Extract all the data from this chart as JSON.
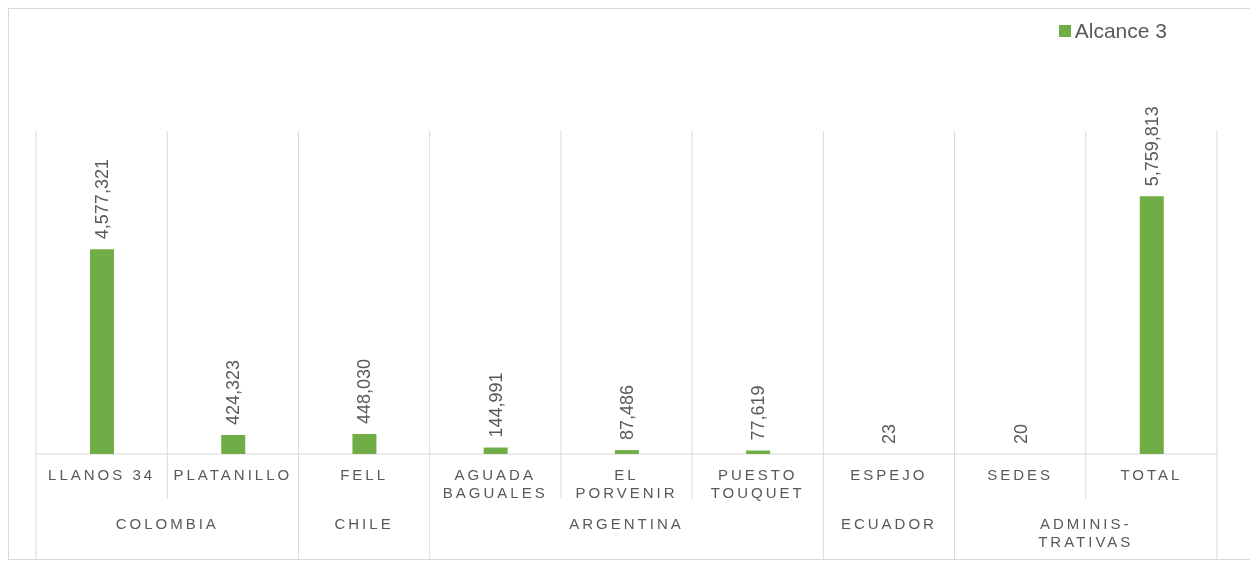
{
  "chart_data": {
    "type": "bar",
    "categories": [
      "LLANOS 34",
      "PLATANILLO",
      "FELL",
      "AGUADA BAGUALES",
      "EL PORVENIR",
      "PUESTO TOUQUET",
      "ESPEJO",
      "SEDES",
      "TOTAL"
    ],
    "series": [
      {
        "name": "Alcance 3",
        "color": "#70ad47",
        "values": [
          4577321,
          424323,
          448030,
          144991,
          87486,
          77619,
          23,
          20,
          5759813
        ],
        "value_labels": [
          "4,577,321",
          "424,323",
          "448,030",
          "144,991",
          "87,486",
          "77,619",
          "23",
          "20",
          "5,759,813"
        ]
      }
    ],
    "annotations": [
      "COLOMBIA",
      "CHILE",
      "ARGENTINA",
      "ECUADOR",
      "ADMINIS-TRATIVAS"
    ],
    "legend": "top right"
  }
}
